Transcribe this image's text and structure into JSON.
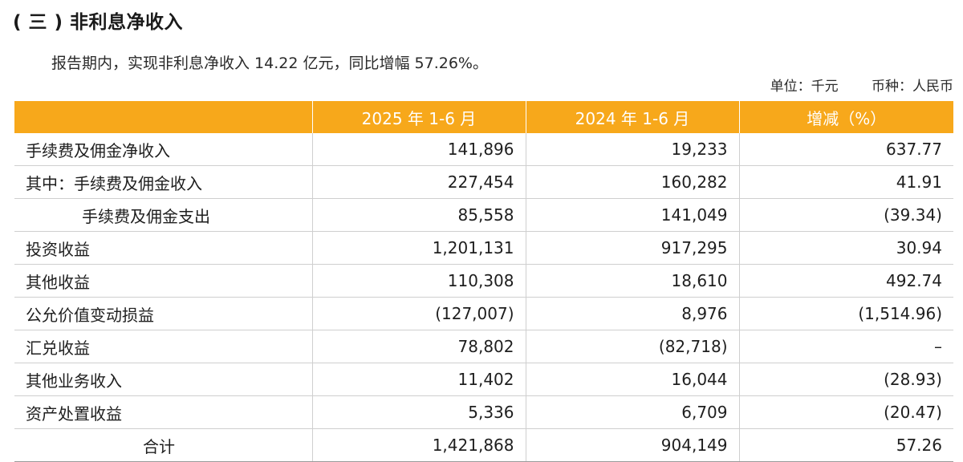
{
  "section_title": "( 三 ) 非利息净收入",
  "intro": "报告期内，实现非利息净收入 14.22 亿元，同比增幅 57.26%。",
  "unit": {
    "unit_label": "单位：千元",
    "currency_label": "币种：人民币"
  },
  "table": {
    "headers": [
      "",
      "2025 年 1-6 月",
      "2024 年 1-6 月",
      "增减（%）"
    ],
    "rows": [
      {
        "label": "手续费及佣金净收入",
        "y2025": "141,896",
        "y2024": "19,233",
        "change": "637.77"
      },
      {
        "label": "其中：手续费及佣金收入",
        "y2025": "227,454",
        "y2024": "160,282",
        "change": "41.91"
      },
      {
        "label": "手续费及佣金支出",
        "y2025": "85,558",
        "y2024": "141,049",
        "change": "(39.34)"
      },
      {
        "label": "投资收益",
        "y2025": "1,201,131",
        "y2024": "917,295",
        "change": "30.94"
      },
      {
        "label": "其他收益",
        "y2025": "110,308",
        "y2024": "18,610",
        "change": "492.74"
      },
      {
        "label": "公允价值变动损益",
        "y2025": "(127,007)",
        "y2024": "8,976",
        "change": "(1,514.96)"
      },
      {
        "label": "汇兑收益",
        "y2025": "78,802",
        "y2024": "(82,718)",
        "change": "–"
      },
      {
        "label": "其他业务收入",
        "y2025": "11,402",
        "y2024": "16,044",
        "change": "(28.93)"
      },
      {
        "label": "资产处置收益",
        "y2025": "5,336",
        "y2024": "6,709",
        "change": "(20.47)"
      },
      {
        "label": "合计",
        "y2025": "1,421,868",
        "y2024": "904,149",
        "change": "57.26"
      }
    ]
  }
}
